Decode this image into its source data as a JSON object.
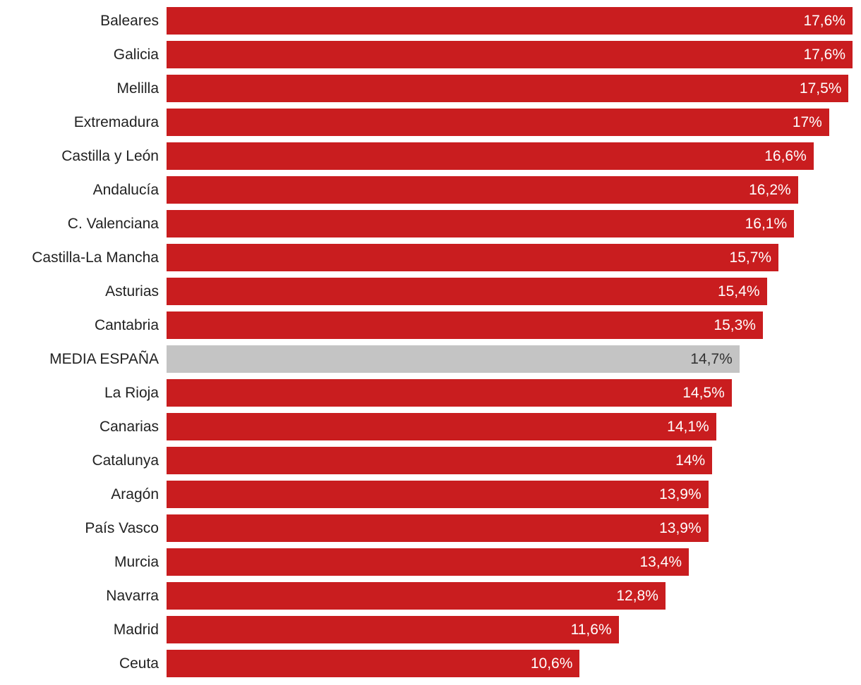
{
  "chart_data": {
    "type": "bar",
    "orientation": "horizontal",
    "title": "",
    "xlabel": "",
    "ylabel": "",
    "xlim": [
      0,
      17.6
    ],
    "grid": false,
    "categories": [
      "Baleares",
      "Galicia",
      "Melilla",
      "Extremadura",
      "Castilla y León",
      "Andalucía",
      "C. Valenciana",
      "Castilla-La Mancha",
      "Asturias",
      "Cantabria",
      "MEDIA ESPAÑA",
      "La Rioja",
      "Canarias",
      "Catalunya",
      "Aragón",
      "País Vasco",
      "Murcia",
      "Navarra",
      "Madrid",
      "Ceuta"
    ],
    "values": [
      17.6,
      17.6,
      17.5,
      17,
      16.6,
      16.2,
      16.1,
      15.7,
      15.4,
      15.3,
      14.7,
      14.5,
      14.1,
      14,
      13.9,
      13.9,
      13.4,
      12.8,
      11.6,
      10.6
    ],
    "labels": [
      "17,6%",
      "17,6%",
      "17,5%",
      "17%",
      "16,6%",
      "16,2%",
      "16,1%",
      "15,7%",
      "15,4%",
      "15,3%",
      "14,7%",
      "14,5%",
      "14,1%",
      "14%",
      "13,9%",
      "13,9%",
      "13,4%",
      "12,8%",
      "11,6%",
      "10,6%"
    ],
    "highlight_index": 10,
    "colors": {
      "bar": "#c91d1f",
      "highlight": "#c4c4c4"
    }
  }
}
